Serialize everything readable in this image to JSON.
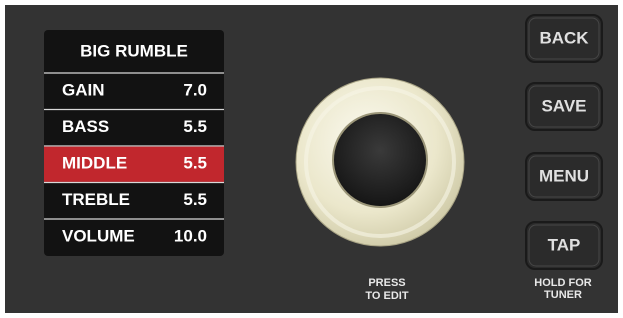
{
  "display": {
    "title": "BIG RUMBLE",
    "rows": [
      {
        "label": "GAIN",
        "value": "7.0"
      },
      {
        "label": "BASS",
        "value": "5.5"
      },
      {
        "label": "MIDDLE",
        "value": "5.5"
      },
      {
        "label": "TREBLE",
        "value": "5.5"
      },
      {
        "label": "VOLUME",
        "value": "10.0"
      }
    ]
  },
  "knob": {
    "caption": [
      "PRESS",
      "TO EDIT"
    ]
  },
  "buttons": [
    {
      "label": "BACK"
    },
    {
      "label": "SAVE"
    },
    {
      "label": "MENU"
    },
    {
      "label": "TAP",
      "caption": [
        "HOLD FOR",
        "TUNER"
      ]
    }
  ]
}
